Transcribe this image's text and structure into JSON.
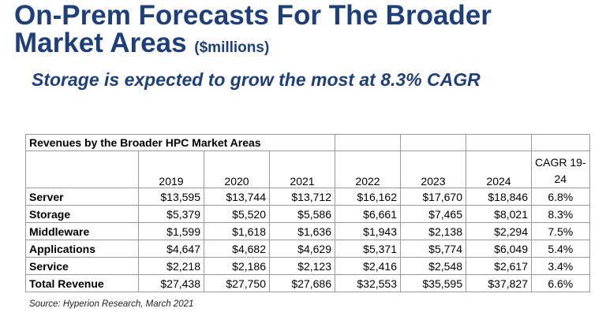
{
  "header": {
    "title_line1": "On-Prem Forecasts For The Broader",
    "title_line2": "Market Areas",
    "units": "($millions)",
    "subtitle": "Storage is expected to grow the most at 8.3% CAGR"
  },
  "table": {
    "caption": "Revenues by the Broader HPC Market Areas",
    "years": [
      "2019",
      "2020",
      "2021",
      "2022",
      "2023",
      "2024"
    ],
    "cagr_header_line1": "CAGR 19-",
    "cagr_header_line2": "24",
    "rows": [
      {
        "label": "Server",
        "values": [
          "$13,595",
          "$13,744",
          "$13,712",
          "$16,162",
          "$17,670",
          "$18,846"
        ],
        "cagr": "6.8%"
      },
      {
        "label": "Storage",
        "values": [
          "$5,379",
          "$5,520",
          "$5,586",
          "$6,661",
          "$7,465",
          "$8,021"
        ],
        "cagr": "8.3%"
      },
      {
        "label": "Middleware",
        "values": [
          "$1,599",
          "$1,618",
          "$1,636",
          "$1,943",
          "$2,138",
          "$2,294"
        ],
        "cagr": "7.5%"
      },
      {
        "label": "Applications",
        "values": [
          "$4,647",
          "$4,682",
          "$4,629",
          "$5,371",
          "$5,774",
          "$6,049"
        ],
        "cagr": "5.4%"
      },
      {
        "label": "Service",
        "values": [
          "$2,218",
          "$2,186",
          "$2,123",
          "$2,416",
          "$2,548",
          "$2,617"
        ],
        "cagr": "3.4%"
      },
      {
        "label": "Total Revenue",
        "values": [
          "$27,438",
          "$27,750",
          "$27,686",
          "$32,553",
          "$35,595",
          "$37,827"
        ],
        "cagr": "6.6%"
      }
    ]
  },
  "source": "Source: Hyperion Research, March 2021"
}
